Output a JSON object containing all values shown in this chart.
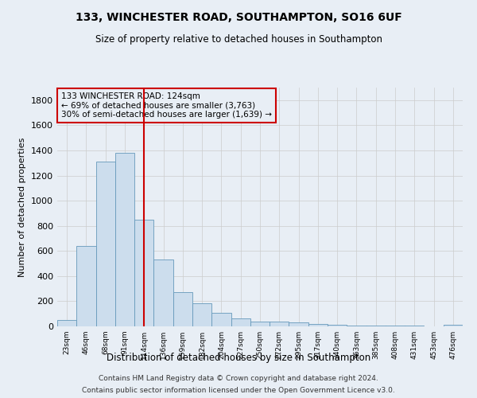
{
  "title": "133, WINCHESTER ROAD, SOUTHAMPTON, SO16 6UF",
  "subtitle": "Size of property relative to detached houses in Southampton",
  "xlabel": "Distribution of detached houses by size in Southampton",
  "ylabel": "Number of detached properties",
  "bar_color": "#ccdded",
  "bar_edge_color": "#6699bb",
  "grid_color": "#cccccc",
  "annotation_box_color": "#cc0000",
  "vline_color": "#cc0000",
  "vline_x": 4.0,
  "annotation_text": "133 WINCHESTER ROAD: 124sqm\n← 69% of detached houses are smaller (3,763)\n30% of semi-detached houses are larger (1,639) →",
  "categories": [
    "23sqm",
    "46sqm",
    "68sqm",
    "91sqm",
    "114sqm",
    "136sqm",
    "159sqm",
    "182sqm",
    "204sqm",
    "227sqm",
    "250sqm",
    "272sqm",
    "295sqm",
    "317sqm",
    "340sqm",
    "363sqm",
    "385sqm",
    "408sqm",
    "431sqm",
    "453sqm",
    "476sqm"
  ],
  "bar_heights": [
    50,
    640,
    1310,
    1380,
    850,
    530,
    275,
    185,
    105,
    65,
    38,
    38,
    30,
    22,
    15,
    8,
    8,
    5,
    5,
    2,
    15
  ],
  "ylim": [
    0,
    1900
  ],
  "yticks": [
    0,
    200,
    400,
    600,
    800,
    1000,
    1200,
    1400,
    1600,
    1800
  ],
  "footer_line1": "Contains HM Land Registry data © Crown copyright and database right 2024.",
  "footer_line2": "Contains public sector information licensed under the Open Government Licence v3.0.",
  "bg_color": "#e8eef5",
  "plot_bg_color": "#e8eef5"
}
